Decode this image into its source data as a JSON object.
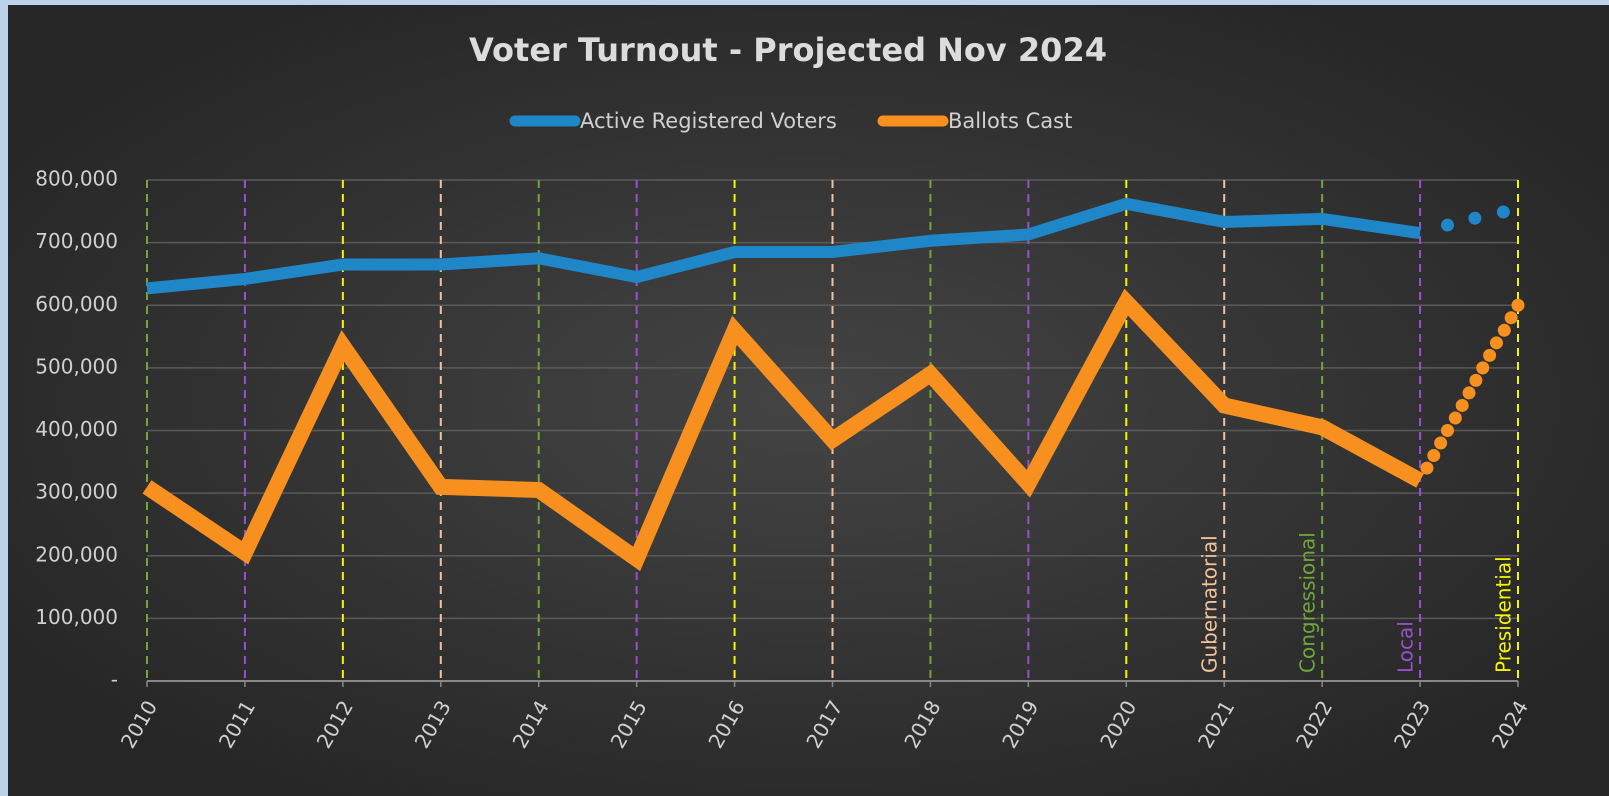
{
  "chart_data": {
    "type": "line",
    "title": "Voter Turnout - Projected Nov 2024",
    "x": [
      2010,
      2011,
      2012,
      2013,
      2014,
      2015,
      2016,
      2017,
      2018,
      2019,
      2020,
      2021,
      2022,
      2023
    ],
    "xlim": [
      2010,
      2024
    ],
    "xticks": [
      2010,
      2011,
      2012,
      2013,
      2014,
      2015,
      2016,
      2017,
      2018,
      2019,
      2020,
      2021,
      2022,
      2023,
      2024
    ],
    "ylim": [
      0,
      800000
    ],
    "yticks": [
      {
        "value": 0,
        "label": "-"
      },
      {
        "value": 100000,
        "label": "100,000"
      },
      {
        "value": 200000,
        "label": "200,000"
      },
      {
        "value": 300000,
        "label": "300,000"
      },
      {
        "value": 400000,
        "label": "400,000"
      },
      {
        "value": 500000,
        "label": "500,000"
      },
      {
        "value": 600000,
        "label": "600,000"
      },
      {
        "value": 700000,
        "label": "700,000"
      },
      {
        "value": 800000,
        "label": "800,000"
      }
    ],
    "grid": true,
    "legend": "top",
    "series": [
      {
        "name": "Active Registered Voters",
        "color": "#1f86c8",
        "values": [
          627000,
          642000,
          665000,
          665000,
          675000,
          645000,
          685000,
          685000,
          703000,
          713000,
          762000,
          733000,
          738000,
          715000
        ],
        "projection": {
          "x": [
            2023.28,
            2023.56,
            2023.85
          ],
          "values": [
            728000,
            739000,
            749000
          ]
        }
      },
      {
        "name": "Ballots Cast",
        "color": "#f7901e",
        "values": [
          310000,
          205000,
          535000,
          310000,
          305000,
          195000,
          560000,
          385000,
          490000,
          315000,
          605000,
          440000,
          405000,
          320000
        ],
        "projection": {
          "x": [
            2023.07,
            2023.14,
            2023.21,
            2023.28,
            2023.36,
            2023.43,
            2023.5,
            2023.57,
            2023.64,
            2023.71,
            2023.78,
            2023.86,
            2023.93,
            2024
          ],
          "values": [
            340000,
            360000,
            380000,
            400000,
            420000,
            440000,
            460000,
            480000,
            500000,
            520000,
            540000,
            560000,
            580000,
            600000
          ]
        }
      }
    ],
    "election_markers": [
      {
        "x": 2010,
        "color": "#6fa83a"
      },
      {
        "x": 2011,
        "color": "#9a4fd0"
      },
      {
        "x": 2012,
        "color": "#f5f500"
      },
      {
        "x": 2013,
        "color": "#f3c29a"
      },
      {
        "x": 2014,
        "color": "#6fa83a"
      },
      {
        "x": 2015,
        "color": "#9a4fd0"
      },
      {
        "x": 2016,
        "color": "#f5f500"
      },
      {
        "x": 2017,
        "color": "#f3c29a"
      },
      {
        "x": 2018,
        "color": "#6fa83a"
      },
      {
        "x": 2019,
        "color": "#9a4fd0"
      },
      {
        "x": 2020,
        "color": "#f5f500"
      },
      {
        "x": 2021,
        "color": "#f3c29a"
      },
      {
        "x": 2022,
        "color": "#6fa83a"
      },
      {
        "x": 2023,
        "color": "#9a4fd0"
      },
      {
        "x": 2024,
        "color": "#f5f500"
      }
    ],
    "annotations": [
      {
        "text": "Gubernatorial",
        "x": 2021,
        "color": "#f3c29a"
      },
      {
        "text": "Congressional",
        "x": 2022,
        "color": "#6fa83a"
      },
      {
        "text": "Local",
        "x": 2023,
        "color": "#9a4fd0"
      },
      {
        "text": "Presidential",
        "x": 2024,
        "color": "#f5f500"
      }
    ]
  }
}
